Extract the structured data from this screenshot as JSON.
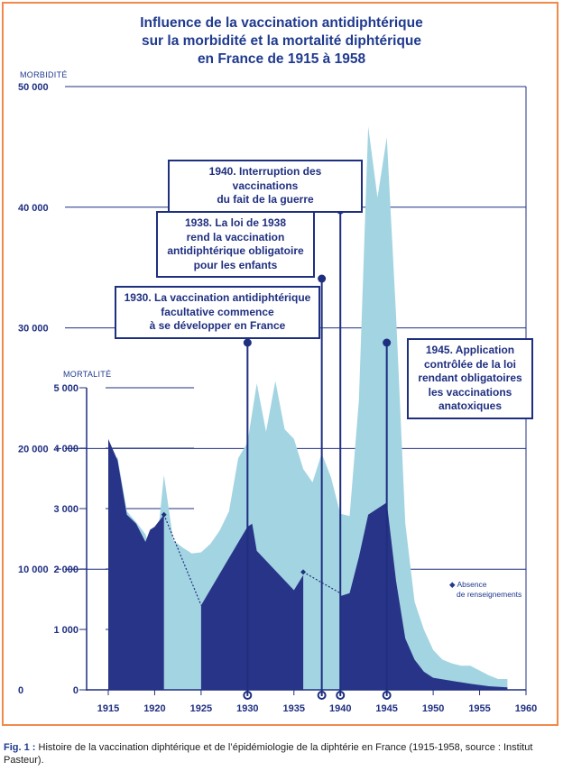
{
  "chart_data": {
    "type": "area",
    "title": [
      "Influence de la vaccination antidiphtérique",
      "sur la morbidité et la mortalité diphtérique",
      "en France de 1915 à 1958"
    ],
    "xlim": [
      1913,
      1960
    ],
    "x_ticks": [
      "1915",
      "1920",
      "1925",
      "1930",
      "1935",
      "1940",
      "1945",
      "1950",
      "1955",
      "1960"
    ],
    "morbidity_axis": {
      "label": "MORBIDITÉ",
      "ylim": [
        0,
        50000
      ],
      "ticks": [
        "0",
        "10 000",
        "20 000",
        "30 000",
        "40 000",
        "50 000"
      ]
    },
    "mortality_axis": {
      "label": "MORTALITÉ",
      "ylim": [
        0,
        5000
      ],
      "ticks": [
        "0",
        "1 000",
        "2 000",
        "3 000",
        "4 000",
        "5 000"
      ]
    },
    "series": [
      {
        "name": "Morbidité",
        "color": "#a3d4e2",
        "axis": "morbidity",
        "points": [
          [
            1915,
            18500
          ],
          [
            1916,
            19300
          ],
          [
            1917,
            14800
          ],
          [
            1918,
            13900
          ],
          [
            1919,
            12900
          ],
          [
            1919.5,
            11700
          ],
          [
            1920,
            10200
          ],
          [
            1921,
            17800
          ],
          [
            1922,
            12400
          ],
          [
            1923,
            11800
          ],
          [
            1924,
            11300
          ],
          [
            1925,
            11400
          ],
          [
            1926,
            12100
          ],
          [
            1927,
            13200
          ],
          [
            1928,
            14800
          ],
          [
            1929,
            19200
          ],
          [
            1930,
            20500
          ],
          [
            1931,
            25400
          ],
          [
            1932,
            21400
          ],
          [
            1933,
            25600
          ],
          [
            1934,
            21600
          ],
          [
            1935,
            20800
          ],
          [
            1936,
            18300
          ],
          [
            1937,
            17200
          ],
          [
            1938,
            19600
          ],
          [
            1939,
            17600
          ],
          [
            1940,
            14600
          ],
          [
            1941,
            14400
          ],
          [
            1942,
            24000
          ],
          [
            1943,
            46700
          ],
          [
            1944,
            40800
          ],
          [
            1945,
            45800
          ],
          [
            1946,
            31000
          ],
          [
            1947,
            13800
          ],
          [
            1948,
            7300
          ],
          [
            1949,
            5000
          ],
          [
            1950,
            3300
          ],
          [
            1951,
            2500
          ],
          [
            1952,
            2200
          ],
          [
            1953,
            2000
          ],
          [
            1954,
            2000
          ],
          [
            1955,
            1600
          ],
          [
            1956,
            1200
          ],
          [
            1957,
            900
          ],
          [
            1958,
            900
          ]
        ]
      },
      {
        "name": "Mortalité",
        "color": "#283487",
        "axis": "mortality",
        "segments": [
          [
            [
              1915,
              4150
            ],
            [
              1916,
              3800
            ],
            [
              1917,
              2900
            ],
            [
              1918,
              2750
            ],
            [
              1919,
              2450
            ],
            [
              1919.5,
              2650
            ],
            [
              1920,
              2700
            ],
            [
              1921,
              2900
            ],
            [
              1921,
              0
            ],
            [
              1915,
              0
            ]
          ],
          [
            [
              1925,
              1400
            ],
            [
              1930,
              2700
            ],
            [
              1930.5,
              2750
            ],
            [
              1931,
              2300
            ],
            [
              1935,
              1650
            ],
            [
              1936,
              1900
            ],
            [
              1936,
              0
            ],
            [
              1925,
              0
            ]
          ],
          [
            [
              1940,
              1550
            ],
            [
              1941,
              1600
            ],
            [
              1942,
              2200
            ],
            [
              1943,
              2900
            ],
            [
              1945,
              3100
            ],
            [
              1946,
              1800
            ],
            [
              1947,
              850
            ],
            [
              1948,
              500
            ],
            [
              1949,
              300
            ],
            [
              1950,
              200
            ],
            [
              1952,
              150
            ],
            [
              1954,
              100
            ],
            [
              1956,
              60
            ],
            [
              1958,
              40
            ],
            [
              1958,
              0
            ],
            [
              1940,
              0
            ]
          ]
        ]
      }
    ],
    "missing_data": [
      [
        [
          1921,
          2900
        ],
        [
          1925,
          1400
        ]
      ],
      [
        [
          1936,
          1950
        ],
        [
          1940,
          1600
        ]
      ]
    ],
    "annotations": [
      {
        "year": 1930,
        "lines": [
          "1930. La vaccination antidiphtérique",
          "facultative commence",
          "à se développer en France"
        ]
      },
      {
        "year": 1938,
        "lines": [
          "1938. La loi de 1938",
          "rend la vaccination",
          "antidiphtérique obligatoire",
          "pour les enfants"
        ]
      },
      {
        "year": 1940,
        "lines": [
          "1940. Interruption des vaccinations",
          "du fait de la guerre"
        ]
      },
      {
        "year": 1945,
        "lines": [
          "1945. Application",
          "contrôlée de la loi",
          "rendant obligatoires",
          "les vaccinations",
          "anatoxiques"
        ]
      }
    ],
    "legend_absence": [
      "Absence",
      "de renseignements"
    ]
  },
  "caption": {
    "label": "Fig. 1 :",
    "text": " Histoire de la vaccination diphtérique et de l’épidémiologie de la diphtérie en France (1915-1958, source : Institut Pasteur)."
  }
}
